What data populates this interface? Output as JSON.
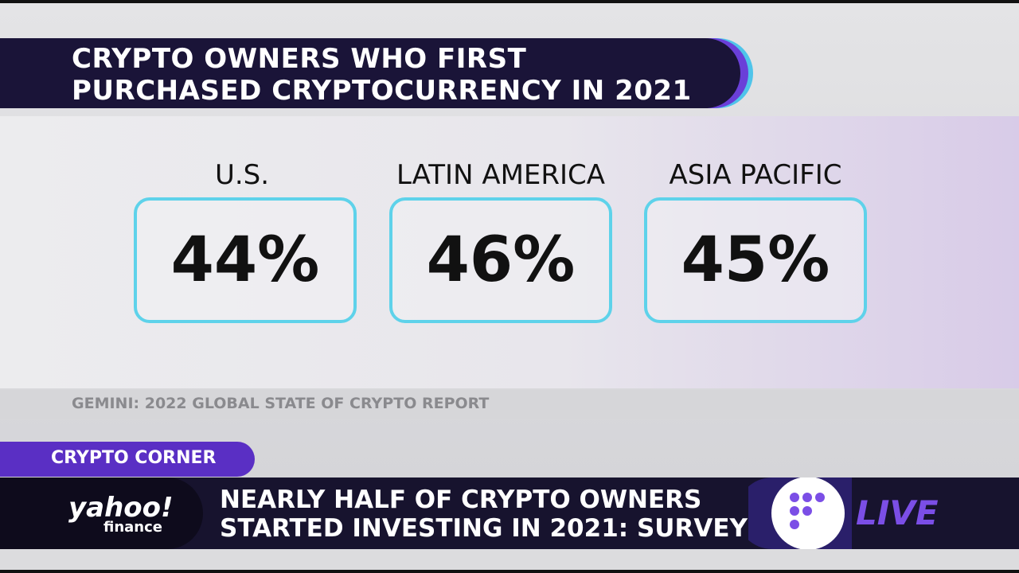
{
  "title": {
    "line1": "CRYPTO OWNERS WHO FIRST",
    "line2": "PURCHASED CRYPTOCURRENCY IN 2021"
  },
  "cards": [
    {
      "label": "U.S.",
      "value": "44%"
    },
    {
      "label": "LATIN AMERICA",
      "value": "46%"
    },
    {
      "label": "ASIA PACIFIC",
      "value": "45%"
    }
  ],
  "source": "GEMINI: 2022 GLOBAL STATE OF CRYPTO REPORT",
  "segment": "CRYPTO CORNER",
  "brand": {
    "name": "yahoo!",
    "sub": "finance"
  },
  "headline": {
    "line1": "NEARLY HALF OF CRYPTO OWNERS",
    "line2": "STARTED INVESTING IN 2021: SURVEY"
  },
  "live": "LIVE"
}
